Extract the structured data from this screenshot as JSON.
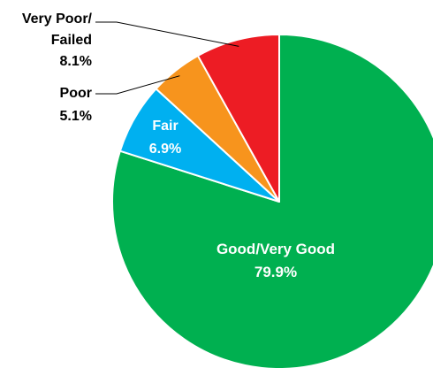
{
  "chart_data": {
    "type": "pie",
    "slices": [
      {
        "label_lines": [
          "Good/Very Good"
        ],
        "value": 79.9,
        "value_text": "79.9%",
        "color": "#00b050",
        "label_color": "#ffffff",
        "label_position": "inside"
      },
      {
        "label_lines": [
          "Fair"
        ],
        "value": 6.9,
        "value_text": "6.9%",
        "color": "#00b0f0",
        "label_color": "#ffffff",
        "label_position": "inside"
      },
      {
        "label_lines": [
          "Poor"
        ],
        "value": 5.1,
        "value_text": "5.1%",
        "color": "#f7941d",
        "label_color": "#000000",
        "label_position": "outside-left"
      },
      {
        "label_lines": [
          "Very Poor/",
          "Failed"
        ],
        "value": 8.1,
        "value_text": "8.1%",
        "color": "#ed1c24",
        "label_color": "#000000",
        "label_position": "outside-left"
      }
    ],
    "start": "12 o'clock",
    "direction": "clockwise",
    "legend": "none",
    "border_color": "#ffffff"
  }
}
